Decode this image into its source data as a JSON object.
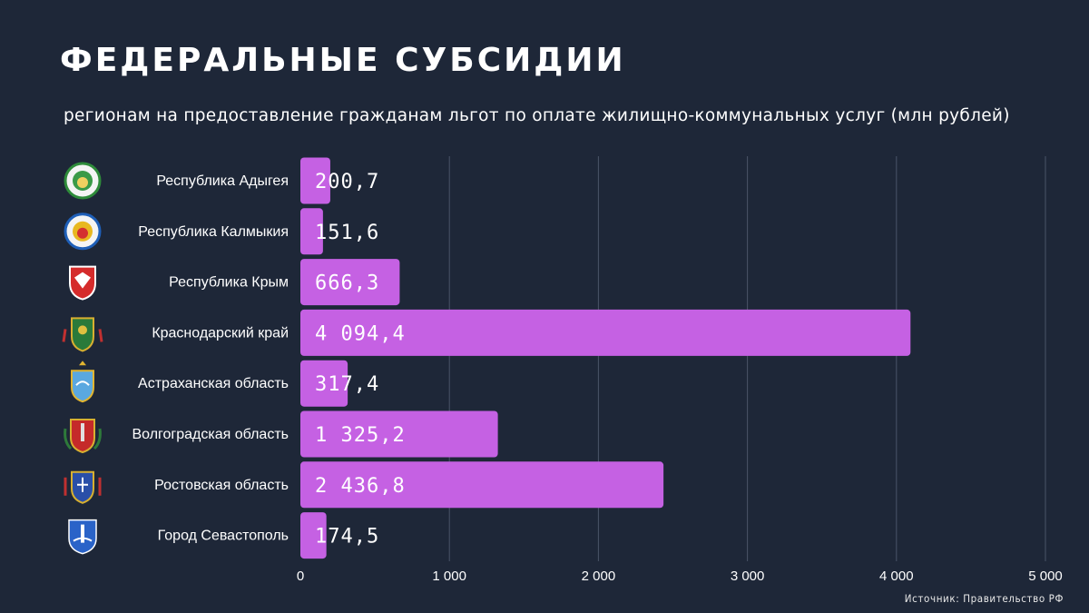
{
  "title": "ФЕДЕРАЛЬНЫЕ СУБСИДИИ",
  "subtitle": "регионам на предоставление гражданам льгот по оплате жилищно-коммунальных услуг (млн рублей)",
  "source": "Источник: Правительство РФ",
  "colors": {
    "background": "#1e2738",
    "bar": "#c561e3",
    "grid": "#4a5468",
    "text": "#ffffff"
  },
  "chart_data": {
    "type": "bar",
    "orientation": "horizontal",
    "title": "ФЕДЕРАЛЬНЫЕ СУБСИДИИ",
    "subtitle": "регионам на предоставление гражданам льгот по оплате жилищно-коммунальных услуг (млн рублей)",
    "categories": [
      "Республика Адыгея",
      "Республика Калмыкия",
      "Республика Крым",
      "Краснодарский край",
      "Астраханская область",
      "Волгоградская область",
      "Ростовская область",
      "Город Севастополь"
    ],
    "values": [
      200.7,
      151.6,
      666.3,
      4094.4,
      317.4,
      1325.2,
      2436.8,
      174.5
    ],
    "value_labels": [
      "200,7",
      "151,6",
      "666,3",
      "4 094,4",
      "317,4",
      "1 325,2",
      "2 436,8",
      "174,5"
    ],
    "icons": [
      "adygea-coat-of-arms-icon",
      "kalmykia-coat-of-arms-icon",
      "crimea-coat-of-arms-icon",
      "krasnodar-coat-of-arms-icon",
      "astrakhan-coat-of-arms-icon",
      "volgograd-coat-of-arms-icon",
      "rostov-coat-of-arms-icon",
      "sevastopol-coat-of-arms-icon"
    ],
    "xlim": [
      0,
      5000
    ],
    "xticks": [
      0,
      1000,
      2000,
      3000,
      4000,
      5000
    ],
    "xtick_labels": [
      "0",
      "1 000",
      "2 000",
      "3 000",
      "4 000",
      "5 000"
    ],
    "xlabel": "",
    "ylabel": "",
    "grid": true,
    "legend": "none"
  }
}
